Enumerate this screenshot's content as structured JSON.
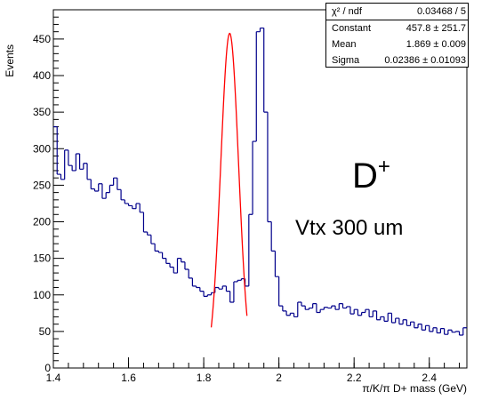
{
  "chart_data": {
    "type": "histogram",
    "xlabel": "π/K/π D+  mass (GeV)",
    "ylabel": "Events",
    "xlim": [
      1.4,
      2.5
    ],
    "ylim": [
      0,
      490
    ],
    "x_ticks": [
      "1.4",
      "1.6",
      "1.8",
      "2",
      "2.2",
      "2.4"
    ],
    "y_ticks": [
      "0",
      "50",
      "100",
      "150",
      "200",
      "250",
      "300",
      "350",
      "400",
      "450"
    ],
    "bin_width": 0.01,
    "bin_start": 1.4,
    "values": [
      330,
      265,
      258,
      298,
      277,
      270,
      293,
      272,
      280,
      258,
      245,
      242,
      252,
      232,
      240,
      250,
      260,
      244,
      230,
      225,
      222,
      218,
      225,
      213,
      186,
      182,
      170,
      160,
      158,
      150,
      143,
      138,
      130,
      150,
      145,
      135,
      123,
      112,
      110,
      105,
      98,
      100,
      103,
      110,
      108,
      112,
      105,
      90,
      118,
      120,
      122,
      112,
      210,
      310,
      460,
      465,
      350,
      200,
      160,
      125,
      85,
      78,
      72,
      75,
      70,
      90,
      85,
      80,
      82,
      88,
      76,
      80,
      83,
      82,
      85,
      80,
      88,
      82,
      84,
      74,
      80,
      72,
      76,
      80,
      70,
      78,
      66,
      70,
      64,
      75,
      62,
      68,
      60,
      66,
      58,
      63,
      55,
      60,
      52,
      58,
      50,
      55,
      48,
      54,
      46,
      52,
      49,
      50,
      45,
      55
    ],
    "series": [
      {
        "name": "histogram",
        "color": "#00008b"
      },
      {
        "name": "fit",
        "color": "#ff0000"
      }
    ],
    "fit": {
      "constant": 457.8,
      "mean": 1.869,
      "sigma": 0.02386,
      "x_range": [
        1.82,
        1.915
      ]
    },
    "grid": false,
    "annotations": [
      "D⁺",
      "Vtx 300 um"
    ]
  },
  "stats": {
    "rows": [
      {
        "label": "χ² / ndf",
        "value": "0.03468 / 5"
      },
      {
        "label": "Constant",
        "value": "457.8 ± 251.7"
      },
      {
        "label": "Mean",
        "value": "1.869 ± 0.009"
      },
      {
        "label": "Sigma",
        "value": "0.02386 ± 0.01093"
      }
    ]
  },
  "annotations": {
    "particle_base": "D",
    "particle_sup": "+",
    "vertex": "Vtx 300 um"
  }
}
